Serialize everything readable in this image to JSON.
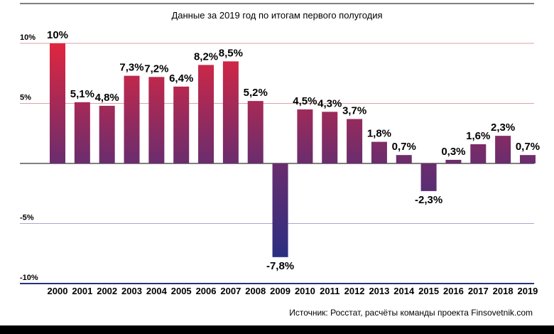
{
  "chart_data": {
    "type": "bar",
    "title": "Данные за 2019 год по итогам первого полугодия",
    "source": "Источник: Росстат, расчёты команды проекта Finsovetnik.com",
    "categories": [
      "2000",
      "2001",
      "2002",
      "2003",
      "2004",
      "2005",
      "2006",
      "2007",
      "2008",
      "2009",
      "2010",
      "2011",
      "2012",
      "2013",
      "2014",
      "2015",
      "2016",
      "2017",
      "2018",
      "2019"
    ],
    "values": [
      10,
      5.1,
      4.8,
      7.3,
      7.2,
      6.4,
      8.2,
      8.5,
      5.2,
      -7.8,
      4.5,
      4.3,
      3.7,
      1.8,
      0.7,
      -2.3,
      0.3,
      1.6,
      2.3,
      0.7
    ],
    "value_labels": [
      "10%",
      "5,1%",
      "4,8%",
      "7,3%",
      "7,2%",
      "6,4%",
      "8,2%",
      "8,5%",
      "5,2%",
      "-7,8%",
      "4,5%",
      "4,3%",
      "3,7%",
      "1,8%",
      "0,7%",
      "-2,3%",
      "0,3%",
      "1,6%",
      "2,3%",
      "0,7%"
    ],
    "y_ticks": [
      10,
      5,
      -5,
      -10
    ],
    "y_tick_labels": [
      "10%",
      "5%",
      "-5%",
      "-10%"
    ],
    "ylim": [
      -10,
      10
    ],
    "legend": "none",
    "colors": {
      "bar_top": "#e0263f",
      "bar_mid": "#6a2d6e",
      "bar_bottom": "#1a2f86",
      "grid_positive": "#d9a3a6",
      "grid_negative": "#a7a8cc",
      "baseline_bottom": "#28337a",
      "frame": "#000000"
    }
  }
}
